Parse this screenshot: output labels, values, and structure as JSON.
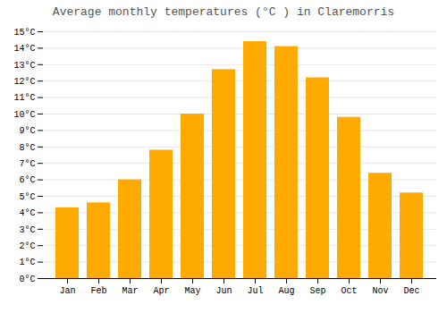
{
  "chart_data": {
    "type": "bar",
    "title": "Average monthly temperatures (°C ) in Claremorris",
    "categories": [
      "Jan",
      "Feb",
      "Mar",
      "Apr",
      "May",
      "Jun",
      "Jul",
      "Aug",
      "Sep",
      "Oct",
      "Nov",
      "Dec"
    ],
    "values": [
      4.3,
      4.6,
      6.0,
      7.8,
      10.0,
      12.7,
      14.4,
      14.1,
      12.2,
      9.8,
      6.4,
      5.2
    ],
    "color": "#FFAA00",
    "ylim": [
      0,
      15
    ],
    "yticks": [
      {
        "value": 0,
        "label": "0°C"
      },
      {
        "value": 1,
        "label": "1°C"
      },
      {
        "value": 2,
        "label": "2°C"
      },
      {
        "value": 3,
        "label": "3°C"
      },
      {
        "value": 4,
        "label": "4°C"
      },
      {
        "value": 5,
        "label": "5°C"
      },
      {
        "value": 6,
        "label": "6°C"
      },
      {
        "value": 7,
        "label": "7°C"
      },
      {
        "value": 8,
        "label": "8°C"
      },
      {
        "value": 9,
        "label": "9°C"
      },
      {
        "value": 10,
        "label": "10°C"
      },
      {
        "value": 11,
        "label": "11°C"
      },
      {
        "value": 12,
        "label": "12°C"
      },
      {
        "value": 13,
        "label": "13°C"
      },
      {
        "value": 14,
        "label": "14°C"
      },
      {
        "value": 15,
        "label": "15°C"
      }
    ],
    "grid": true
  }
}
